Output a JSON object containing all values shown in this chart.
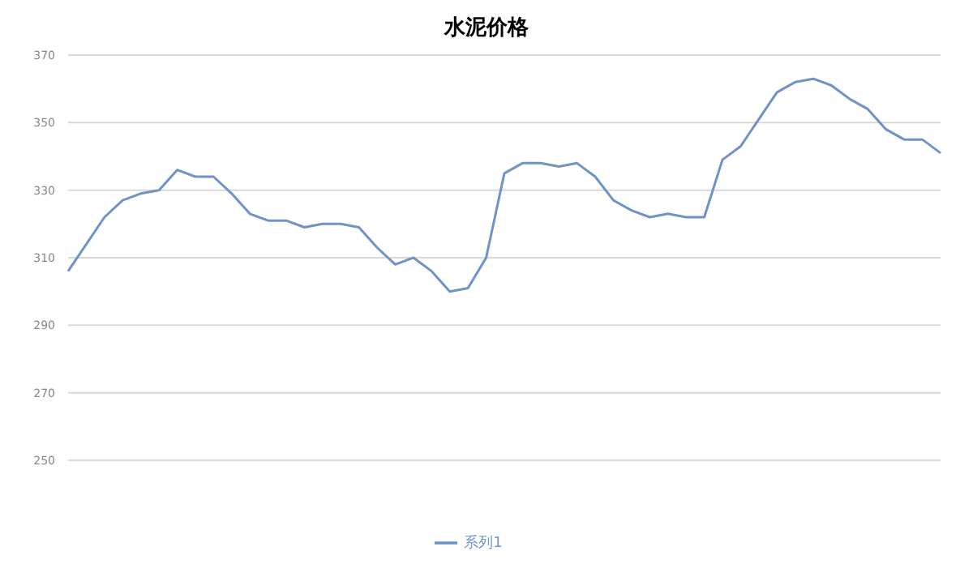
{
  "chart_data": {
    "type": "line",
    "title": "水泥价格",
    "categories": [
      null,
      null,
      null,
      null,
      null,
      null,
      null,
      null,
      null,
      null,
      null,
      null,
      null,
      null,
      null,
      null,
      null,
      null,
      null,
      null,
      null,
      null,
      null,
      null,
      null,
      null,
      null,
      null,
      null,
      null,
      null,
      null,
      null,
      null,
      null,
      null,
      null,
      null,
      null,
      null,
      null,
      null,
      null,
      null,
      null,
      null,
      null,
      null,
      null
    ],
    "series": [
      {
        "name": "系列1",
        "color": "#6f93c9",
        "values": [
          306,
          314,
          322,
          327,
          329,
          330,
          336,
          334,
          334,
          329,
          323,
          321,
          321,
          319,
          320,
          320,
          319,
          313,
          308,
          310,
          306,
          300,
          301,
          310,
          335,
          338,
          338,
          337,
          338,
          334,
          327,
          324,
          322,
          323,
          322,
          322,
          339,
          343,
          351,
          359,
          362,
          363,
          361,
          357,
          354,
          348,
          345,
          345,
          341
        ]
      }
    ],
    "ylim": [
      250,
      370
    ],
    "yticks": [
      250,
      270,
      290,
      310,
      330,
      350,
      370
    ],
    "grid": "y",
    "legend": "bottom",
    "marker": "none"
  }
}
